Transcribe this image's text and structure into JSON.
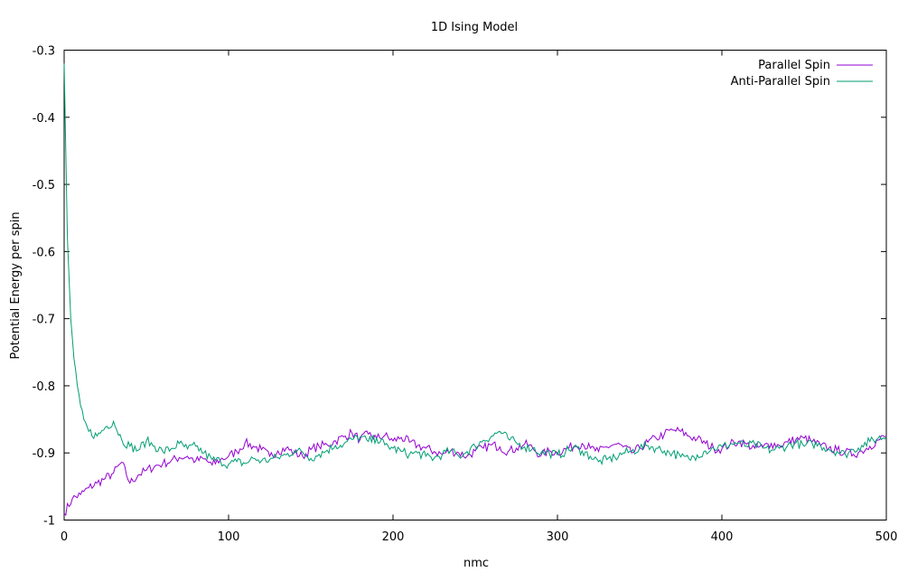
{
  "chart_data": {
    "type": "line",
    "title": "1D Ising Model",
    "xlabel": "nmc",
    "ylabel": "Potential Energy per spin",
    "xlim": [
      0,
      500
    ],
    "ylim": [
      -1,
      -0.3
    ],
    "xticks": [
      0,
      100,
      200,
      300,
      400,
      500
    ],
    "yticks": [
      -1,
      -0.9,
      -0.8,
      -0.7,
      -0.6,
      -0.5,
      -0.4,
      -0.3
    ],
    "grid": false,
    "legend_position": "top-right",
    "series": [
      {
        "name": "Parallel Spin",
        "color": "#9400d3",
        "x": [
          0,
          5,
          10,
          15,
          20,
          25,
          30,
          35,
          40,
          45,
          50,
          55,
          60,
          65,
          70,
          75,
          80,
          85,
          90,
          95,
          100,
          105,
          110,
          115,
          120,
          125,
          130,
          135,
          140,
          145,
          150,
          155,
          160,
          165,
          170,
          175,
          180,
          185,
          190,
          195,
          200,
          205,
          210,
          215,
          220,
          225,
          230,
          235,
          240,
          245,
          250,
          255,
          260,
          265,
          270,
          275,
          280,
          285,
          290,
          295,
          300,
          305,
          310,
          315,
          320,
          325,
          330,
          335,
          340,
          345,
          350,
          355,
          360,
          365,
          370,
          375,
          380,
          385,
          390,
          395,
          400,
          405,
          410,
          415,
          420,
          425,
          430,
          435,
          440,
          445,
          450,
          455,
          460,
          465,
          470,
          475,
          480,
          485,
          490,
          495,
          500
        ],
        "values": [
          -0.99,
          -0.968,
          -0.962,
          -0.952,
          -0.945,
          -0.938,
          -0.93,
          -0.914,
          -0.945,
          -0.933,
          -0.926,
          -0.92,
          -0.916,
          -0.912,
          -0.907,
          -0.905,
          -0.912,
          -0.909,
          -0.918,
          -0.91,
          -0.905,
          -0.898,
          -0.885,
          -0.89,
          -0.895,
          -0.905,
          -0.897,
          -0.893,
          -0.9,
          -0.905,
          -0.895,
          -0.89,
          -0.888,
          -0.882,
          -0.876,
          -0.87,
          -0.88,
          -0.872,
          -0.878,
          -0.874,
          -0.882,
          -0.877,
          -0.884,
          -0.889,
          -0.893,
          -0.898,
          -0.902,
          -0.897,
          -0.9,
          -0.905,
          -0.897,
          -0.893,
          -0.888,
          -0.891,
          -0.898,
          -0.893,
          -0.887,
          -0.893,
          -0.904,
          -0.897,
          -0.9,
          -0.894,
          -0.89,
          -0.886,
          -0.893,
          -0.898,
          -0.891,
          -0.887,
          -0.891,
          -0.9,
          -0.893,
          -0.884,
          -0.878,
          -0.872,
          -0.866,
          -0.868,
          -0.875,
          -0.879,
          -0.886,
          -0.893,
          -0.894,
          -0.887,
          -0.883,
          -0.887,
          -0.893,
          -0.891,
          -0.886,
          -0.889,
          -0.884,
          -0.88,
          -0.878,
          -0.883,
          -0.889,
          -0.893,
          -0.896,
          -0.899,
          -0.902,
          -0.897,
          -0.89,
          -0.881,
          -0.875
        ]
      },
      {
        "name": "Anti-Parallel Spin",
        "color": "#009e73",
        "x": [
          0,
          2,
          4,
          6,
          8,
          10,
          12,
          15,
          20,
          25,
          30,
          35,
          40,
          45,
          50,
          55,
          60,
          65,
          70,
          75,
          80,
          85,
          90,
          95,
          100,
          105,
          110,
          115,
          120,
          125,
          130,
          135,
          140,
          145,
          150,
          155,
          160,
          165,
          170,
          175,
          180,
          185,
          190,
          195,
          200,
          205,
          210,
          215,
          220,
          225,
          230,
          235,
          240,
          245,
          250,
          255,
          260,
          265,
          270,
          275,
          280,
          285,
          290,
          295,
          300,
          305,
          310,
          315,
          320,
          325,
          330,
          335,
          340,
          345,
          350,
          355,
          360,
          365,
          370,
          375,
          380,
          385,
          390,
          395,
          400,
          405,
          410,
          415,
          420,
          425,
          430,
          435,
          440,
          445,
          450,
          455,
          460,
          465,
          470,
          475,
          480,
          485,
          490,
          495,
          500
        ],
        "values": [
          -0.32,
          -0.58,
          -0.7,
          -0.76,
          -0.8,
          -0.83,
          -0.85,
          -0.868,
          -0.875,
          -0.862,
          -0.853,
          -0.88,
          -0.89,
          -0.896,
          -0.882,
          -0.89,
          -0.898,
          -0.894,
          -0.886,
          -0.894,
          -0.89,
          -0.9,
          -0.91,
          -0.912,
          -0.917,
          -0.913,
          -0.916,
          -0.908,
          -0.912,
          -0.91,
          -0.907,
          -0.903,
          -0.897,
          -0.899,
          -0.908,
          -0.902,
          -0.896,
          -0.889,
          -0.887,
          -0.88,
          -0.876,
          -0.883,
          -0.878,
          -0.888,
          -0.893,
          -0.898,
          -0.902,
          -0.9,
          -0.905,
          -0.908,
          -0.902,
          -0.897,
          -0.905,
          -0.898,
          -0.89,
          -0.881,
          -0.875,
          -0.868,
          -0.879,
          -0.885,
          -0.891,
          -0.893,
          -0.9,
          -0.9,
          -0.903,
          -0.898,
          -0.892,
          -0.897,
          -0.905,
          -0.913,
          -0.91,
          -0.907,
          -0.9,
          -0.898,
          -0.893,
          -0.889,
          -0.893,
          -0.897,
          -0.9,
          -0.906,
          -0.909,
          -0.903,
          -0.897,
          -0.893,
          -0.891,
          -0.887,
          -0.885,
          -0.89,
          -0.887,
          -0.893,
          -0.896,
          -0.893,
          -0.889,
          -0.885,
          -0.89,
          -0.886,
          -0.889,
          -0.894,
          -0.898,
          -0.902,
          -0.895,
          -0.889,
          -0.883,
          -0.878,
          -0.876
        ]
      }
    ]
  }
}
